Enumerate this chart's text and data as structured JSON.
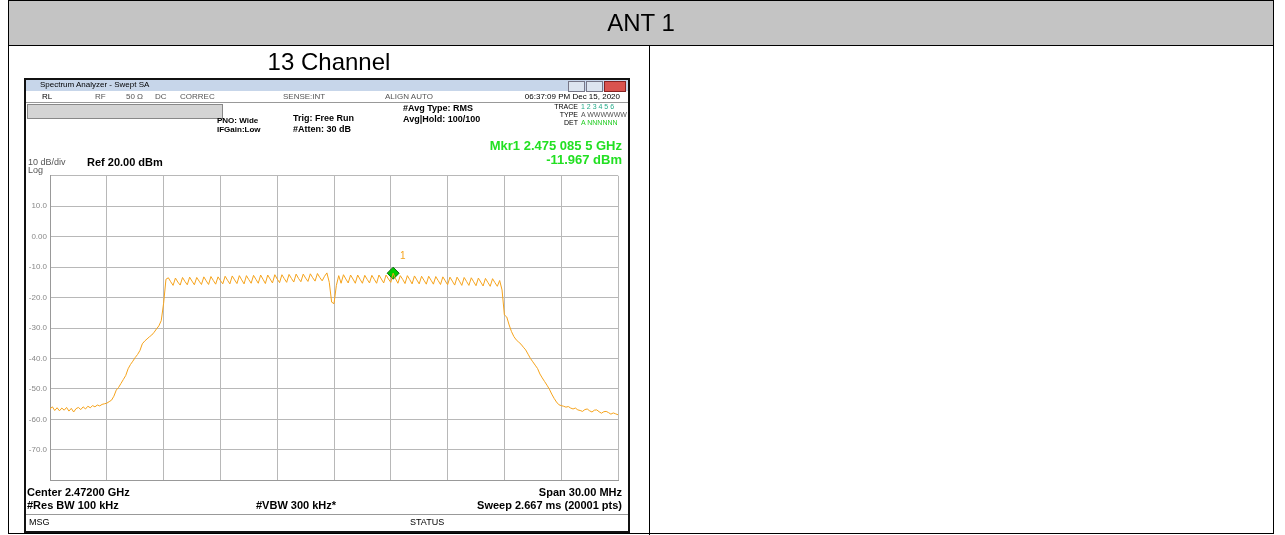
{
  "chart_data": {
    "type": "line",
    "title": "ANT 1",
    "subtitle": "13 Channel",
    "categories": [
      null,
      null,
      null,
      null,
      null,
      null,
      null,
      null,
      null,
      null,
      null,
      null,
      null,
      null,
      null,
      null,
      null,
      null,
      null,
      null,
      null,
      null,
      null,
      null,
      null,
      null,
      null,
      null,
      null,
      null,
      null,
      null,
      null,
      null,
      null,
      null,
      null,
      null,
      null,
      null,
      null,
      null,
      null,
      null,
      null,
      null,
      null,
      null,
      null,
      null,
      null,
      null,
      null,
      null,
      null,
      null,
      null,
      null,
      null,
      null,
      null,
      null,
      null,
      null,
      null,
      null,
      null,
      null,
      null,
      null,
      null,
      null,
      null,
      null,
      null,
      null,
      null,
      null,
      null,
      null,
      null,
      null,
      null,
      null,
      null,
      null,
      null,
      null,
      null,
      null,
      null,
      null,
      null,
      null,
      null,
      null,
      null,
      null,
      null,
      null,
      null,
      null,
      null,
      null,
      null,
      null,
      null,
      null,
      null,
      null,
      null,
      null,
      null,
      null,
      null,
      null,
      null,
      null,
      null,
      null,
      null,
      null,
      null,
      null,
      null,
      null,
      null,
      null,
      null,
      null,
      null,
      null,
      null,
      null,
      null,
      null,
      null,
      null,
      null,
      null,
      null,
      null,
      null,
      null,
      null,
      null,
      null,
      null,
      null,
      null,
      null,
      null,
      null,
      null,
      null,
      null,
      null,
      null,
      null,
      null,
      null,
      null,
      null,
      null,
      null,
      null,
      null,
      null,
      null,
      null,
      null,
      null,
      null,
      null,
      null,
      null,
      null,
      null,
      null,
      null,
      null,
      null,
      null,
      null,
      null,
      null,
      null,
      null,
      null,
      null,
      null,
      null,
      null,
      null,
      null,
      null,
      null,
      null,
      null,
      null,
      null,
      null,
      null,
      null,
      null,
      null,
      null,
      null,
      null,
      null,
      null,
      null,
      null,
      null,
      null,
      null,
      null,
      null,
      null,
      null,
      null,
      null,
      null,
      null,
      null,
      null,
      null,
      null,
      null,
      null,
      null,
      null,
      null,
      null,
      null,
      null,
      null,
      null,
      null,
      null,
      null
    ],
    "series": [
      {
        "color": "#f5a31c",
        "values": [
          -56.6,
          -55.9,
          -57.1,
          -56.2,
          -57.2,
          -56.3,
          -57.0,
          -56.1,
          -57.3,
          -56.4,
          -57.6,
          -56.5,
          -56.1,
          -56.8,
          -55.9,
          -56.6,
          -55.7,
          -56.2,
          -55.5,
          -55.9,
          -55.3,
          -55.6,
          -55.1,
          -54.9,
          -54.7,
          -54.2,
          -53.7,
          -52.4,
          -50.4,
          -49.5,
          -48.2,
          -46.9,
          -45.6,
          -43.4,
          -42.0,
          -40.9,
          -39.7,
          -38.7,
          -37.4,
          -35.2,
          -34.3,
          -33.6,
          -32.9,
          -32.3,
          -31.4,
          -30.3,
          -29.3,
          -27.6,
          -21.9,
          -14.0,
          -13.5,
          -14.8,
          -16.0,
          -13.6,
          -14.9,
          -15.9,
          -13.4,
          -14.7,
          -15.8,
          -13.3,
          -14.6,
          -15.8,
          -13.4,
          -14.6,
          -15.7,
          -13.2,
          -14.5,
          -15.7,
          -13.1,
          -14.4,
          -15.6,
          -13.2,
          -14.4,
          -15.5,
          -13.0,
          -14.3,
          -15.5,
          -12.9,
          -14.2,
          -15.4,
          -12.8,
          -14.2,
          -15.5,
          -12.8,
          -14.1,
          -15.3,
          -12.7,
          -14.0,
          -15.3,
          -12.6,
          -14.0,
          -15.4,
          -12.6,
          -13.9,
          -15.2,
          -12.5,
          -13.9,
          -15.1,
          -12.5,
          -13.8,
          -15.0,
          -12.4,
          -13.7,
          -14.9,
          -12.3,
          -13.7,
          -14.8,
          -12.3,
          -13.6,
          -14.7,
          -12.2,
          -13.5,
          -14.6,
          -12.1,
          -13.4,
          -14.5,
          -13.0,
          -11.9,
          -15.0,
          -21.5,
          -22.0,
          -16.0,
          -12.8,
          -15.3,
          -12.5,
          -13.9,
          -15.2,
          -12.6,
          -13.9,
          -15.3,
          -12.6,
          -14.0,
          -15.3,
          -12.7,
          -14.0,
          -15.2,
          -12.7,
          -14.0,
          -15.3,
          -12.6,
          -13.9,
          -15.2,
          -12.6,
          -13.9,
          -15.0,
          -12.0,
          -13.8,
          -15.3,
          -12.8,
          -14.0,
          -15.4,
          -12.8,
          -14.1,
          -15.5,
          -12.9,
          -14.2,
          -15.5,
          -13.0,
          -14.3,
          -15.6,
          -13.0,
          -14.3,
          -15.6,
          -13.1,
          -14.4,
          -15.7,
          -13.2,
          -14.5,
          -15.8,
          -13.3,
          -14.6,
          -15.9,
          -13.3,
          -14.6,
          -16.0,
          -13.4,
          -14.7,
          -16.0,
          -13.5,
          -14.8,
          -16.1,
          -13.6,
          -14.9,
          -16.2,
          -13.7,
          -15.0,
          -16.3,
          -13.8,
          -15.1,
          -16.3,
          -14.4,
          -17.5,
          -25.7,
          -26.4,
          -29.0,
          -31.2,
          -32.8,
          -33.9,
          -34.6,
          -35.3,
          -36.3,
          -37.2,
          -38.6,
          -40.0,
          -41.1,
          -42.2,
          -43.3,
          -45.1,
          -46.4,
          -47.6,
          -48.8,
          -50.1,
          -51.7,
          -53.1,
          -54.3,
          -55.2,
          -55.5,
          -55.7,
          -56.0,
          -55.8,
          -56.3,
          -56.6,
          -56.3,
          -56.9,
          -57.1,
          -57.4,
          -56.8,
          -56.6,
          -57.2,
          -57.6,
          -57.0,
          -56.9,
          -57.5,
          -58.0,
          -57.5,
          -57.4,
          -57.8,
          -58.3,
          -57.9,
          -58.2,
          -58.5
        ]
      },
      {
        "type": "scatter",
        "color": "#00cc00",
        "marker": "diamond",
        "values": [
          null,
          null,
          null,
          null,
          null,
          null,
          null,
          null,
          null,
          null,
          null,
          null,
          null,
          null,
          null,
          null,
          null,
          null,
          null,
          null,
          null,
          null,
          null,
          null,
          null,
          null,
          null,
          null,
          null,
          null,
          null,
          null,
          null,
          null,
          null,
          null,
          null,
          null,
          null,
          null,
          null,
          null,
          null,
          null,
          null,
          null,
          null,
          null,
          null,
          null,
          null,
          null,
          null,
          null,
          null,
          null,
          null,
          null,
          null,
          null,
          null,
          null,
          null,
          null,
          null,
          null,
          null,
          null,
          null,
          null,
          null,
          null,
          null,
          null,
          null,
          null,
          null,
          null,
          null,
          null,
          null,
          null,
          null,
          null,
          null,
          null,
          null,
          null,
          null,
          null,
          null,
          null,
          null,
          null,
          null,
          null,
          null,
          null,
          null,
          null,
          null,
          null,
          null,
          null,
          null,
          null,
          null,
          null,
          null,
          null,
          null,
          null,
          null,
          null,
          null,
          null,
          null,
          null,
          null,
          null,
          null,
          null,
          null,
          null,
          null,
          null,
          null,
          null,
          null,
          null,
          null,
          null,
          null,
          null,
          null,
          null,
          null,
          null,
          null,
          null,
          null,
          null,
          null,
          null,
          null,
          -12.0,
          null,
          null,
          null,
          null,
          null,
          null,
          null,
          null,
          null,
          null,
          null,
          null,
          null,
          null,
          null,
          null,
          null,
          null,
          null,
          null,
          null,
          null,
          null,
          null,
          null,
          null,
          null,
          null,
          null,
          null,
          null,
          null,
          null,
          null,
          null,
          null,
          null,
          null,
          null,
          null,
          null,
          null,
          null,
          null,
          null,
          null,
          null,
          null,
          null,
          null,
          null,
          null,
          null,
          null,
          null,
          null,
          null,
          null,
          null,
          null,
          null,
          null,
          null,
          null,
          null,
          null,
          null,
          null,
          null,
          null,
          null,
          null,
          null,
          null,
          null,
          null,
          null,
          null,
          null,
          null,
          null,
          null,
          null,
          null,
          null,
          null,
          null,
          null,
          null,
          null,
          null,
          null,
          null,
          null,
          null
        ]
      }
    ],
    "ylim": [
      -80,
      20
    ],
    "yticks": [
      {
        "value": 20,
        "label": null
      },
      {
        "value": 10,
        "label": "10.0"
      },
      {
        "value": 0,
        "label": "0.00"
      },
      {
        "value": -10,
        "label": "-10.0"
      },
      {
        "value": -20,
        "label": "-20.0"
      },
      {
        "value": -30,
        "label": "-30.0"
      },
      {
        "value": -40,
        "label": "-40.0"
      },
      {
        "value": -50,
        "label": "-50.0"
      },
      {
        "value": -60,
        "label": "-60.0"
      },
      {
        "value": -70,
        "label": "-70.0"
      },
      {
        "value": -80,
        "label": null
      }
    ],
    "grid": true,
    "legend": false,
    "tick_labels": "y",
    "marker": "none",
    "line_style": "solid",
    "annotations": [
      "Spectrum Analyzer - Swept SA",
      "RL",
      "RF",
      "50 Ω",
      "DC",
      "CORREC",
      "SENSE:INT",
      "ALIGN AUTO",
      "06:37:09 PM Dec 15, 2020",
      "PNO: Wide",
      "IFGain:Low",
      "Trig: Free Run",
      "#Atten: 30 dB",
      "#Avg Type: RMS",
      "Avg|Hold: 100/100",
      "TRACE",
      "1 2 3 4 5 6",
      "TYPE",
      "A WWWWWW",
      "DET",
      "A NNNNNN",
      "Mkr1 2.475 085 5 GHz",
      "-11.967 dBm",
      "10 dB/div",
      "Log",
      "Ref 20.00 dBm",
      "Center 2.47200 GHz",
      "Span 30.00 MHz",
      "#Res BW 100 kHz",
      "#VBW 300 kHz*",
      "Sweep  2.667 ms (20001 pts)",
      "MSG",
      "STATUS",
      "1"
    ]
  }
}
